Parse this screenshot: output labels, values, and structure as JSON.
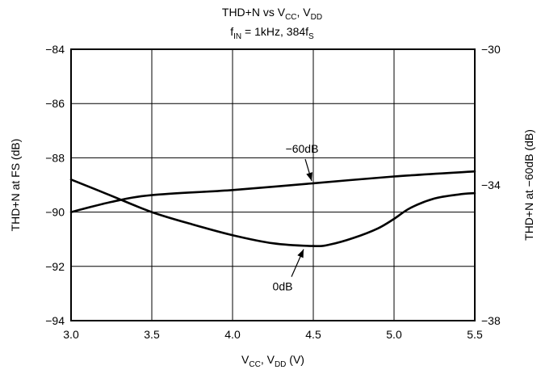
{
  "chart_data": {
    "type": "line",
    "title": {
      "line1": {
        "text": "THD+N vs V",
        "sub1": "CC",
        "mid": ", V",
        "sub2": "DD"
      },
      "line2": {
        "pre": "f",
        "sub1": "IN",
        "mid": " = 1kHz, 384f",
        "sub2": "S"
      }
    },
    "xlabel": {
      "pre": "V",
      "sub1": "CC",
      "mid": ", V",
      "sub2": "DD",
      "post": " (V)"
    },
    "ylabel_left": "THD+N at FS (dB)",
    "ylabel_right": "THD+N at −60dB (dB)",
    "xlim": [
      3.0,
      5.5
    ],
    "ylim_left": [
      -94,
      -84
    ],
    "ylim_right": [
      -38,
      -30
    ],
    "x_ticks": [
      "3.0",
      "3.5",
      "4.0",
      "4.5",
      "5.0",
      "5.5"
    ],
    "x_tick_values": [
      3.0,
      3.5,
      4.0,
      4.5,
      5.0,
      5.5
    ],
    "y_left_ticks": [
      "−84",
      "−86",
      "−88",
      "−90",
      "−92",
      "−94"
    ],
    "y_left_tick_values": [
      -84,
      -86,
      -88,
      -90,
      -92,
      -94
    ],
    "y_right_ticks": [
      "−30",
      "−34",
      "−38"
    ],
    "y_right_tick_values": [
      -30,
      -34,
      -38
    ],
    "grid": true,
    "series": [
      {
        "name": "0dB",
        "axis": "left",
        "x": [
          3.0,
          3.25,
          3.5,
          3.75,
          4.0,
          4.25,
          4.5,
          4.6,
          4.75,
          4.9,
          5.0,
          5.1,
          5.25,
          5.4,
          5.5
        ],
        "y": [
          -88.8,
          -89.4,
          -90.0,
          -90.45,
          -90.85,
          -91.15,
          -91.25,
          -91.2,
          -90.95,
          -90.6,
          -90.25,
          -89.85,
          -89.5,
          -89.35,
          -89.3
        ]
      },
      {
        "name": "−60dB",
        "axis": "right",
        "x": [
          3.0,
          3.25,
          3.5,
          4.0,
          4.5,
          5.0,
          5.5
        ],
        "y": [
          -34.8,
          -34.5,
          -34.3,
          -34.15,
          -33.95,
          -33.75,
          -33.6
        ]
      }
    ],
    "annotations": [
      {
        "text": "−60dB",
        "series": "−60dB",
        "x": 4.5
      },
      {
        "text": "0dB",
        "series": "0dB",
        "x": 4.5
      }
    ]
  }
}
